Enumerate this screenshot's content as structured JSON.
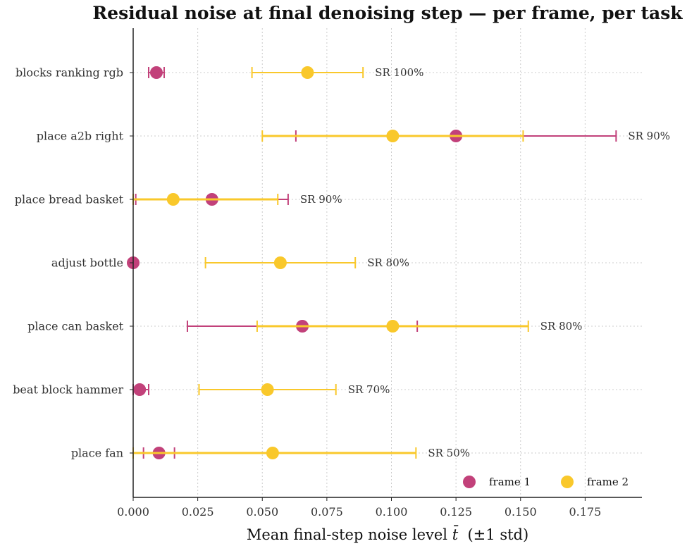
{
  "chart_data": {
    "type": "scatter",
    "title": "Residual noise at final denoising step — per frame, per task",
    "xlabel_prefix": "Mean final-step noise level ",
    "xlabel_symbol": "t̄",
    "xlabel_suffix": "  (±1 std)",
    "xlim": [
      0.0,
      0.197
    ],
    "xticks": [
      0.0,
      0.025,
      0.05,
      0.075,
      0.1,
      0.125,
      0.15,
      0.175
    ],
    "xtick_labels": [
      "0.000",
      "0.025",
      "0.050",
      "0.075",
      "0.100",
      "0.125",
      "0.150",
      "0.175"
    ],
    "grid": true,
    "legend_position": "bottom-right",
    "categories": [
      "blocks ranking rgb",
      "place a2b right",
      "place bread basket",
      "adjust bottle",
      "place can basket",
      "beat block hammer",
      "place fan"
    ],
    "sr_labels": [
      "SR 100%",
      "SR 90%",
      "SR 90%",
      "SR 80%",
      "SR 80%",
      "SR 70%",
      "SR 50%"
    ],
    "series": [
      {
        "name": "frame 1",
        "color": "#c2417a",
        "mean": [
          0.009,
          0.125,
          0.0305,
          0.0,
          0.0655,
          0.0025,
          0.01
        ],
        "std": [
          0.003,
          0.062,
          0.0295,
          0.0,
          0.0445,
          0.0035,
          0.006
        ]
      },
      {
        "name": "frame 2",
        "color": "#f9c82b",
        "mean": [
          0.0675,
          0.1005,
          0.0155,
          0.057,
          0.1005,
          0.052,
          0.054
        ],
        "std": [
          0.0215,
          0.0505,
          0.0405,
          0.029,
          0.0525,
          0.0265,
          0.0555
        ]
      }
    ]
  }
}
